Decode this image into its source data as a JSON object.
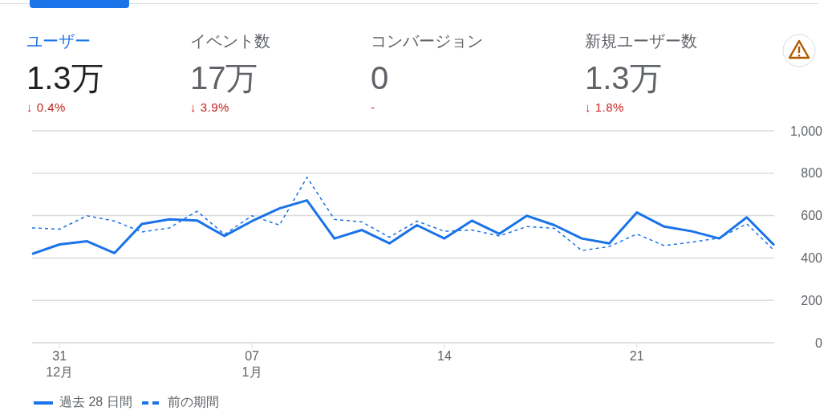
{
  "chart_data": [
    {
      "type": "other",
      "categories": [
        "ユーザー",
        "イベント数",
        "コンバージョン",
        "新規ユーザー数"
      ],
      "value_labels": [
        "1.3万",
        "17万",
        "0",
        "1.3万"
      ],
      "annotations": [
        "↓ 0.4%",
        "↓ 3.9%",
        "-",
        "↓ 1.8%"
      ]
    },
    {
      "type": "line",
      "categories": [
        null,
        "31\n12月",
        null,
        null,
        null,
        null,
        null,
        null,
        "07\n1月",
        null,
        null,
        null,
        null,
        null,
        null,
        "14",
        null,
        null,
        null,
        null,
        null,
        null,
        "21",
        null,
        null,
        null,
        null,
        null
      ],
      "series": [
        {
          "name": "過去 28 日間",
          "color": "#1a73e8",
          "line_style": "solid",
          "values": [
            419,
            464,
            479,
            423,
            561,
            582,
            577,
            504,
            574,
            634,
            672,
            492,
            532,
            469,
            555,
            492,
            576,
            514,
            599,
            555,
            492,
            469,
            615,
            548,
            526,
            492,
            592,
            460
          ]
        },
        {
          "name": "前の期間",
          "color": "#1a73e8",
          "line_style": "dashed",
          "values": [
            542,
            536,
            599,
            574,
            523,
            542,
            621,
            511,
            599,
            555,
            781,
            582,
            570,
            498,
            574,
            526,
            532,
            504,
            548,
            540,
            435,
            454,
            513,
            458,
            475,
            494,
            561,
            435
          ]
        }
      ],
      "ylim": [
        0,
        1000
      ],
      "yticks": [
        0,
        200,
        400,
        600,
        800,
        {
          "value": 1000,
          "label": "1,000"
        }
      ],
      "grid": "y",
      "legend": "bottom left",
      "marker": "none"
    }
  ]
}
